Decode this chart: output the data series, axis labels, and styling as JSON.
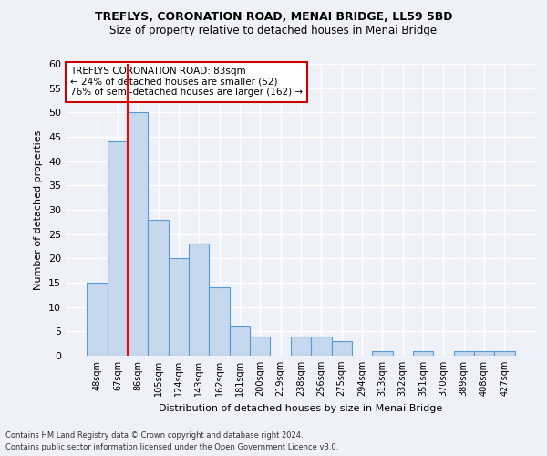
{
  "title": "TREFLYS, CORONATION ROAD, MENAI BRIDGE, LL59 5BD",
  "subtitle": "Size of property relative to detached houses in Menai Bridge",
  "xlabel": "Distribution of detached houses by size in Menai Bridge",
  "ylabel": "Number of detached properties",
  "categories": [
    "48sqm",
    "67sqm",
    "86sqm",
    "105sqm",
    "124sqm",
    "143sqm",
    "162sqm",
    "181sqm",
    "200sqm",
    "219sqm",
    "238sqm",
    "256sqm",
    "275sqm",
    "294sqm",
    "313sqm",
    "332sqm",
    "351sqm",
    "370sqm",
    "389sqm",
    "408sqm",
    "427sqm"
  ],
  "values": [
    15,
    44,
    50,
    28,
    20,
    23,
    14,
    6,
    4,
    0,
    4,
    4,
    3,
    0,
    1,
    0,
    1,
    0,
    1,
    1,
    1
  ],
  "bar_color": "#c5d8ed",
  "bar_edge_color": "#5b9bd5",
  "red_line_index": 2,
  "annotation_title": "TREFLYS CORONATION ROAD: 83sqm",
  "annotation_line1": "← 24% of detached houses are smaller (52)",
  "annotation_line2": "76% of semi-detached houses are larger (162) →",
  "annotation_box_color": "#ffffff",
  "annotation_box_edge_color": "#cc0000",
  "ylim": [
    0,
    60
  ],
  "yticks": [
    0,
    5,
    10,
    15,
    20,
    25,
    30,
    35,
    40,
    45,
    50,
    55,
    60
  ],
  "background_color": "#eef2f8",
  "grid_color": "#ffffff",
  "footer_line1": "Contains HM Land Registry data © Crown copyright and database right 2024.",
  "footer_line2": "Contains public sector information licensed under the Open Government Licence v3.0."
}
